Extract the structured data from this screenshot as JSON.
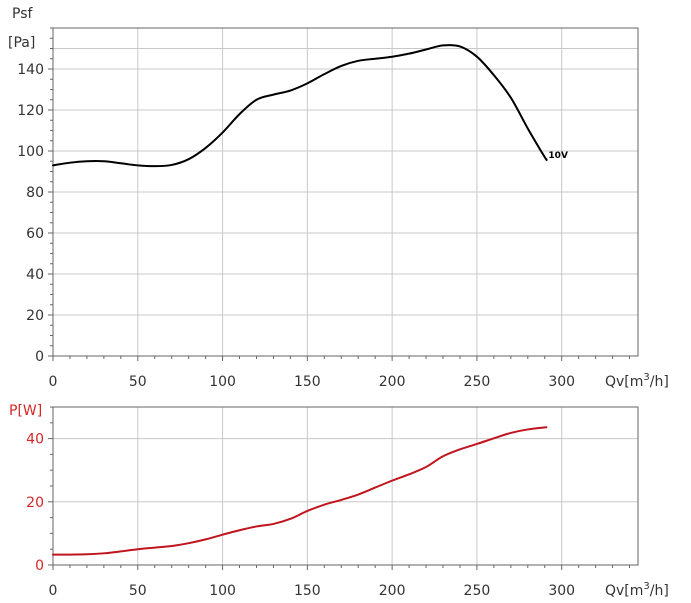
{
  "chart_data": [
    {
      "type": "line",
      "ylabel_line1": "Psf",
      "ylabel_line2": "[Pa]",
      "xlabel": "Qv[m",
      "xlabel_sup": "3",
      "xlabel_end": "/h]",
      "xlim": [
        0,
        345
      ],
      "ylim": [
        0,
        160
      ],
      "xticks": [
        0,
        50,
        100,
        150,
        200,
        250,
        300
      ],
      "yticks": [
        0,
        20,
        40,
        60,
        80,
        100,
        120,
        140
      ],
      "grid": true,
      "series": [
        {
          "name": "10V",
          "color": "#000000",
          "x": [
            0,
            10,
            20,
            30,
            40,
            50,
            60,
            70,
            80,
            90,
            100,
            110,
            120,
            130,
            140,
            150,
            160,
            170,
            180,
            190,
            200,
            210,
            220,
            230,
            240,
            250,
            260,
            270,
            280,
            290,
            291
          ],
          "y": [
            93,
            94.3,
            95,
            95,
            94,
            93,
            92.6,
            93.2,
            96,
            101.5,
            109,
            118,
            125,
            127.5,
            129.5,
            133,
            137.5,
            141.5,
            144,
            145,
            146,
            147.5,
            149.5,
            151.5,
            151,
            146,
            137,
            126,
            111,
            97,
            96
          ]
        }
      ]
    },
    {
      "type": "line",
      "ylabel": "P[W]",
      "ylabel_color": "#d62728",
      "xlabel": "Qv[m",
      "xlabel_sup": "3",
      "xlabel_end": "/h]",
      "xlim": [
        0,
        345
      ],
      "ylim": [
        0,
        50
      ],
      "xticks": [
        0,
        50,
        100,
        150,
        200,
        250,
        300
      ],
      "yticks": [
        0,
        20,
        40
      ],
      "grid": true,
      "series": [
        {
          "color": "#c0141e",
          "x": [
            0,
            10,
            20,
            30,
            40,
            50,
            60,
            70,
            80,
            90,
            100,
            110,
            120,
            130,
            140,
            150,
            160,
            170,
            180,
            190,
            200,
            210,
            220,
            230,
            240,
            250,
            260,
            270,
            280,
            291
          ],
          "y": [
            3.3,
            3.3,
            3.4,
            3.7,
            4.3,
            5,
            5.5,
            6,
            6.9,
            8.1,
            9.6,
            11,
            12.2,
            13,
            14.6,
            17.1,
            19.1,
            20.6,
            22.3,
            24.5,
            26.7,
            28.7,
            31,
            34.4,
            36.6,
            38.3,
            40.1,
            41.8,
            42.9,
            43.6
          ]
        }
      ]
    }
  ]
}
